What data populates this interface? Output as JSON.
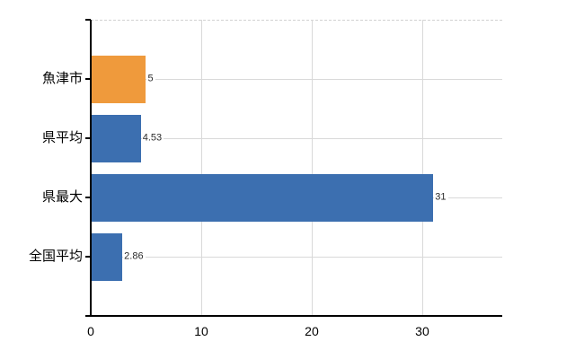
{
  "chart_data": {
    "type": "bar",
    "orientation": "horizontal",
    "title": "",
    "xlabel": "",
    "ylabel": "",
    "categories": [
      "魚津市",
      "県平均",
      "県最大",
      "全国平均"
    ],
    "values": [
      5,
      4.53,
      31,
      2.86
    ],
    "value_labels": [
      "5",
      "4.53",
      "31",
      "2.86"
    ],
    "bar_colors": [
      "#ef9a3c",
      "#3c6fb0",
      "#3c6fb0",
      "#3c6fb0"
    ],
    "highlight_color": "#ef9a3c",
    "series_color": "#3c6fb0",
    "x_ticks": [
      0,
      10,
      20,
      30
    ],
    "x_tick_labels": [
      "0",
      "10",
      "20",
      "30"
    ],
    "xlim": [
      0,
      37.24
    ],
    "grid": "on",
    "gridline_color": "#d9d9d9",
    "axis_color": "#000000",
    "background_color": "#ffffff",
    "legend": "none"
  }
}
